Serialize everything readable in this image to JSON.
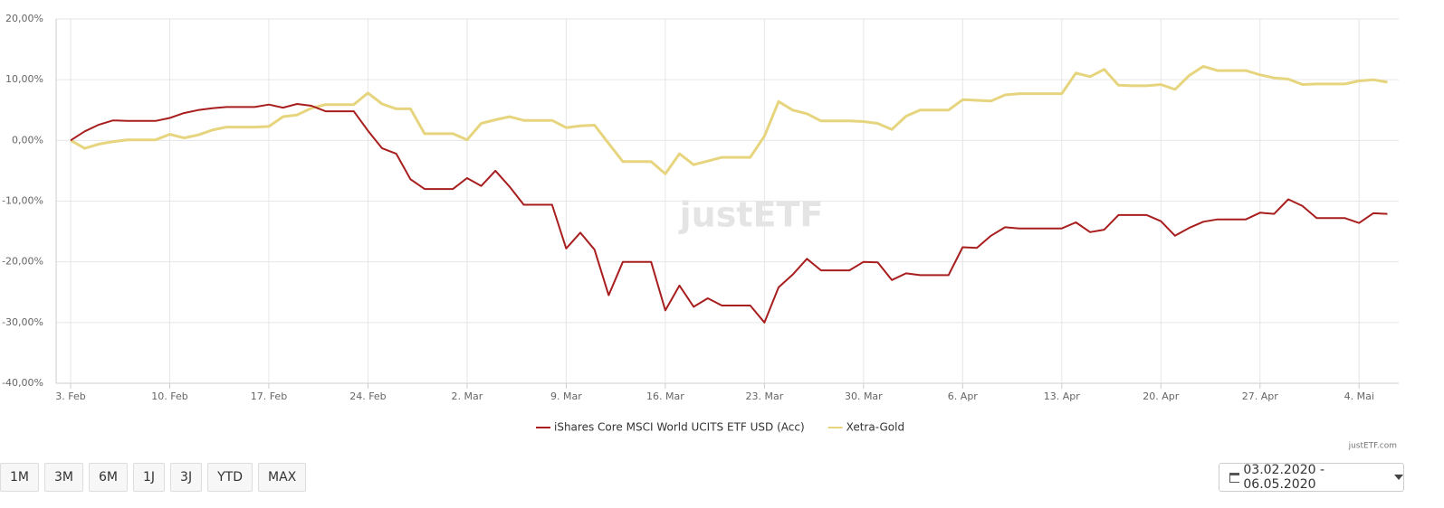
{
  "chart_data": {
    "type": "line",
    "categories": [
      "3. Feb",
      null,
      null,
      null,
      null,
      null,
      null,
      "10. Feb",
      null,
      null,
      null,
      null,
      null,
      null,
      "17. Feb",
      null,
      null,
      null,
      null,
      null,
      null,
      "24. Feb",
      null,
      null,
      null,
      null,
      null,
      null,
      "2. Mar",
      null,
      null,
      null,
      null,
      null,
      null,
      "9. Mar",
      null,
      null,
      null,
      null,
      null,
      null,
      "16. Mar",
      null,
      null,
      null,
      null,
      null,
      null,
      "23. Mar",
      null,
      null,
      null,
      null,
      null,
      null,
      "30. Mar",
      null,
      null,
      null,
      null,
      null,
      null,
      "6. Apr",
      null,
      null,
      null,
      null,
      null,
      null,
      "13. Apr",
      null,
      null,
      null,
      null,
      null,
      null,
      "20. Apr",
      null,
      null,
      null,
      null,
      null,
      null,
      "27. Apr",
      null,
      null,
      null,
      null,
      null,
      null,
      "4. Mai",
      null,
      null
    ],
    "series": [
      {
        "name": "iShares Core MSCI World UCITS ETF USD (Acc)",
        "color": "#a81e1e",
        "values": [
          0,
          1.5,
          2.6,
          3.3,
          3.2,
          3.2,
          3.2,
          3.7,
          4.5,
          5.0,
          5.3,
          5.5,
          5.5,
          5.5,
          5.9,
          5.4,
          6.0,
          5.7,
          4.8,
          4.8,
          4.8,
          1.6,
          -1.3,
          -2.2,
          -6.4,
          -8.0,
          -8.0,
          -8.0,
          -6.2,
          -7.5,
          -5.0,
          -7.6,
          -10.6,
          -10.6,
          -10.6,
          -17.8,
          -15.2,
          -18.0,
          -25.5,
          -20.0,
          -20.0,
          -20.0,
          -28.0,
          -23.9,
          -27.4,
          -26.0,
          -27.2,
          -27.2,
          -27.2,
          -30.0,
          -24.2,
          -22.1,
          -19.5,
          -21.4,
          -21.4,
          -21.4,
          -20.0,
          -20.1,
          -23.0,
          -21.9,
          -22.2,
          -22.2,
          -22.2,
          -17.6,
          -17.7,
          -15.7,
          -14.3,
          -14.5,
          -14.5,
          -14.5,
          -14.5,
          -13.5,
          -15.1,
          -14.7,
          -12.3,
          -12.3,
          -12.3,
          -13.3,
          -15.7,
          -14.4,
          -13.4,
          -13.0,
          -13.0,
          -13.0,
          -11.9,
          -12.1,
          -9.7,
          -10.8,
          -12.8,
          -12.8,
          -12.8,
          -13.6,
          -12.0,
          -12.1
        ]
      },
      {
        "name": "Xetra-Gold",
        "color": "#e6d57e",
        "values": [
          0,
          -1.3,
          -0.6,
          -0.2,
          0.1,
          0.1,
          0.1,
          1.0,
          0.4,
          0.9,
          1.7,
          2.2,
          2.2,
          2.2,
          2.3,
          3.9,
          4.2,
          5.3,
          5.9,
          5.9,
          5.9,
          7.8,
          6.0,
          5.2,
          5.2,
          1.1,
          1.1,
          1.1,
          0.1,
          2.8,
          3.4,
          3.9,
          3.3,
          3.3,
          3.3,
          2.1,
          2.4,
          2.5,
          -0.5,
          -3.5,
          -3.5,
          -3.5,
          -5.5,
          -2.2,
          -4.0,
          -3.4,
          -2.8,
          -2.8,
          -2.8,
          0.7,
          6.4,
          5.0,
          4.4,
          3.2,
          3.2,
          3.2,
          3.1,
          2.8,
          1.8,
          4.0,
          5.0,
          5.0,
          5.0,
          6.7,
          6.6,
          6.5,
          7.5,
          7.7,
          7.7,
          7.7,
          7.7,
          11.1,
          10.5,
          11.7,
          9.1,
          9.0,
          9.0,
          9.2,
          8.4,
          10.7,
          12.2,
          11.5,
          11.5,
          11.5,
          10.8,
          10.3,
          10.1,
          9.2,
          9.3,
          9.3,
          9.3,
          9.8,
          10.0,
          9.6
        ]
      }
    ],
    "ylim": [
      -40,
      20
    ],
    "yticks": [
      {
        "value": -40,
        "label": "-40,00%"
      },
      {
        "value": -30,
        "label": "-30,00%"
      },
      {
        "value": -20,
        "label": "-20,00%"
      },
      {
        "value": -10,
        "label": "-10,00%"
      },
      {
        "value": 0,
        "label": "0,00%"
      },
      {
        "value": 10,
        "label": "10,00%"
      },
      {
        "value": 20,
        "label": "20,00%"
      }
    ],
    "grid": true,
    "legend": "bottom",
    "watermark": "justETF",
    "credit": "justETF.com"
  },
  "controls": {
    "periods": [
      "1M",
      "3M",
      "6M",
      "1J",
      "3J",
      "YTD",
      "MAX"
    ],
    "date_range": "03.02.2020 - 06.05.2020"
  }
}
